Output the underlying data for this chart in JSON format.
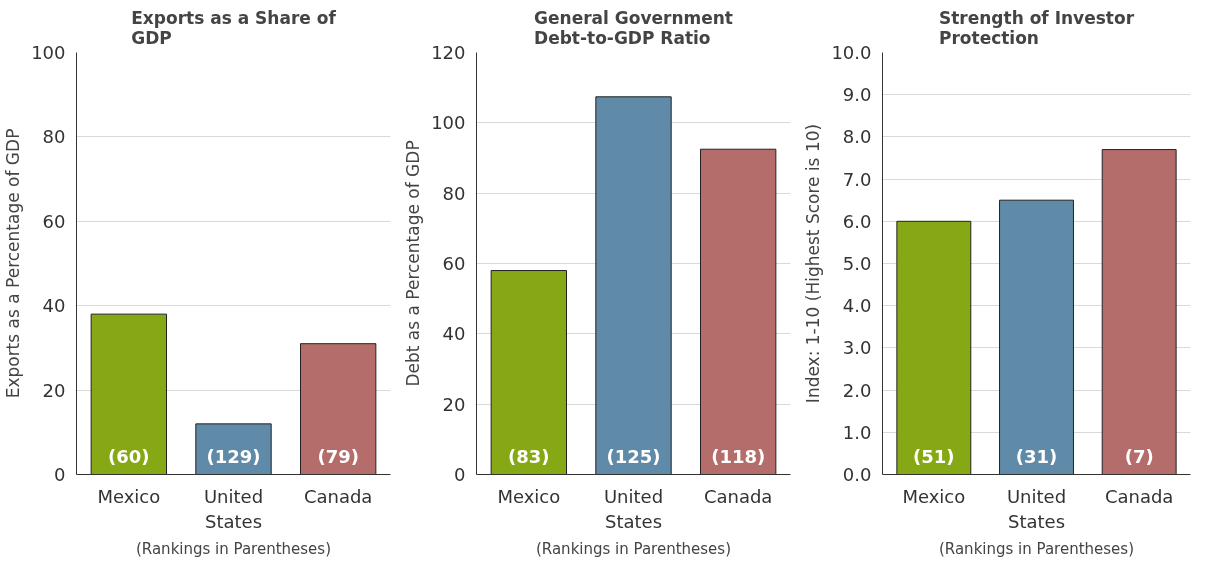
{
  "chart_data": [
    {
      "type": "bar",
      "title": "Exports as a Share of GDP",
      "ylabel": "Exports as a Percentage of GDP",
      "xlabel": "(Rankings in Parentheses)",
      "categories": [
        "Mexico",
        "United States",
        "Canada"
      ],
      "values": [
        38,
        12,
        31
      ],
      "colors": [
        "#86a814",
        "#5f8aa8",
        "#b46d6a"
      ],
      "annotations": [
        {
          "text": "(60)",
          "x": "Mexico",
          "y": 0
        },
        {
          "text": "(129)",
          "x": "United States",
          "y": 0
        },
        {
          "text": "(79)",
          "x": "Canada",
          "y": 0
        }
      ],
      "ylim": [
        0,
        100
      ],
      "yticks": [
        0,
        20,
        40,
        60,
        80,
        100
      ],
      "grid": "y"
    },
    {
      "type": "bar",
      "title": "General Government Debt-to-GDP Ratio",
      "ylabel": "Debt as a Percentage of GDP",
      "xlabel": "(Rankings in Parentheses)",
      "categories": [
        "Mexico",
        "United States",
        "Canada"
      ],
      "values": [
        58,
        107.4,
        92.5
      ],
      "colors": [
        "#86a814",
        "#5f8aa8",
        "#b46d6a"
      ],
      "annotations": [
        {
          "text": "(83)",
          "x": "Mexico",
          "y": 0
        },
        {
          "text": "(125)",
          "x": "United States",
          "y": 0
        },
        {
          "text": "(118)",
          "x": "Canada",
          "y": 0
        }
      ],
      "ylim": [
        0,
        120
      ],
      "yticks": [
        0,
        20,
        40,
        60,
        80,
        100,
        120
      ],
      "grid": "y"
    },
    {
      "type": "bar",
      "title": "Strength of Investor Protection",
      "ylabel": "Index: 1-10 (Highest Score is 10)",
      "xlabel": "(Rankings in Parentheses)",
      "categories": [
        "Mexico",
        "United States",
        "Canada"
      ],
      "values": [
        6.0,
        6.5,
        7.7
      ],
      "colors": [
        "#86a814",
        "#5f8aa8",
        "#b46d6a"
      ],
      "annotations": [
        {
          "text": "(51)",
          "x": "Mexico",
          "y": 0
        },
        {
          "text": "(31)",
          "x": "United States",
          "y": 0
        },
        {
          "text": "(7)",
          "x": "Canada",
          "y": 0
        }
      ],
      "ylim": [
        0,
        10
      ],
      "yticks": [
        {
          "value": 0,
          "label": "0.0"
        },
        {
          "value": 1,
          "label": "1.0"
        },
        {
          "value": 2,
          "label": "2.0"
        },
        {
          "value": 3,
          "label": "3.0"
        },
        {
          "value": 4,
          "label": "4.0"
        },
        {
          "value": 5,
          "label": "5.0"
        },
        {
          "value": 6,
          "label": "6.0"
        },
        {
          "value": 7,
          "label": "7.0"
        },
        {
          "value": 8,
          "label": "8.0"
        },
        {
          "value": 9,
          "label": "9.0"
        },
        {
          "value": 10,
          "label": "10.0"
        }
      ],
      "grid": "y"
    }
  ]
}
